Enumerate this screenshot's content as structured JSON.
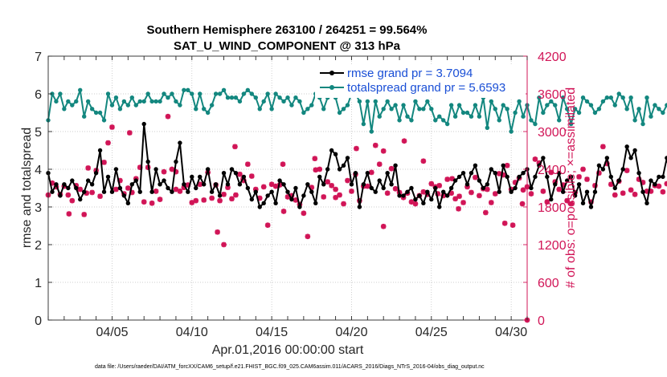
{
  "chart_data": {
    "type": "line",
    "title_line1": "Southern Hemisphere 263100 / 264251 = 99.564%",
    "title_line2": "SAT_U_WIND_COMPONENT @ 313 hPa",
    "xlabel": "Apr.01,2016 00:00:00 start",
    "ylabel_left": "rmse and totalspread",
    "ylabel_right": "# of obs: o=possible; ×=assimilated",
    "footnote": "data file: /Users/raeder/DAI/ATM_forcXX/CAM6_setup/f.e21.FHIST_BGC.f09_025.CAM6assim.011/ACARS_2016/Diags_NTrS_2016-04/obs_diag_output.nc",
    "x_range": [
      1,
      31
    ],
    "x_ticks": [
      5,
      10,
      15,
      20,
      25,
      30
    ],
    "x_tick_labels": [
      "04/05",
      "04/10",
      "04/15",
      "04/20",
      "04/25",
      "04/30"
    ],
    "ylim_left": [
      0,
      7
    ],
    "y_ticks_left": [
      "0",
      "1",
      "2",
      "3",
      "4",
      "5",
      "6",
      "7"
    ],
    "ylim_right": [
      0,
      4200
    ],
    "y_ticks_right": [
      "0",
      "600",
      "1200",
      "1800",
      "2400",
      "3000",
      "3600",
      "4200"
    ],
    "colors": {
      "rmse": "#000000",
      "spread": "#13877f",
      "obs": "#d11557",
      "right_axis": "#d11557",
      "legend_text": "#1a4fd6"
    },
    "legend": [
      {
        "key": "rmse",
        "label": "rmse grand pr = 3.7094"
      },
      {
        "key": "spread",
        "label": "totalspread grand pr = 5.6593"
      }
    ],
    "x_start": 1.0,
    "x_step": 0.25,
    "series": [
      {
        "name": "rmse",
        "values": [
          3.9,
          3.4,
          3.6,
          3.3,
          3.6,
          3.5,
          3.7,
          3.5,
          3.2,
          3.4,
          3.7,
          3.6,
          3.9,
          4.5,
          3.4,
          3.8,
          3.4,
          4.0,
          3.5,
          3.3,
          3.1,
          3.6,
          3.7,
          3.4,
          5.2,
          4.2,
          3.4,
          4.0,
          3.6,
          3.7,
          3.5,
          3.4,
          4.2,
          4.7,
          3.6,
          3.4,
          3.8,
          3.5,
          3.8,
          3.6,
          4.0,
          3.4,
          3.6,
          3.3,
          3.9,
          3.6,
          4.0,
          3.9,
          3.6,
          3.8,
          3.5,
          3.2,
          3.4,
          3.0,
          3.1,
          3.3,
          3.4,
          3.1,
          3.7,
          3.6,
          3.4,
          3.2,
          3.5,
          3.0,
          3.3,
          3.6,
          3.4,
          3.1,
          3.8,
          3.6,
          4.0,
          4.5,
          4.4,
          4.0,
          4.1,
          4.3,
          3.6,
          3.9,
          3.0,
          3.6,
          3.9,
          3.5,
          3.4,
          3.7,
          3.5,
          3.9,
          3.6,
          4.1,
          3.3,
          3.3,
          3.4,
          3.5,
          3.2,
          3.3,
          3.1,
          3.4,
          3.2,
          3.5,
          3.0,
          3.4,
          3.3,
          3.5,
          3.7,
          3.8,
          3.9,
          3.6,
          3.9,
          4.1,
          3.7,
          3.5,
          3.6,
          4.0,
          3.9,
          3.4,
          4.1,
          3.8,
          3.4,
          3.5,
          3.8,
          3.9,
          4.0,
          3.5,
          3.8,
          4.1,
          4.3,
          3.8,
          3.2,
          3.6,
          3.9,
          3.4,
          3.7,
          3.8,
          3.3,
          3.6,
          3.1,
          3.4,
          3.0,
          3.4,
          4.1,
          4.0,
          4.3,
          3.8,
          3.5,
          3.7,
          4.0,
          4.6,
          4.3,
          4.5,
          3.9,
          3.4,
          3.1,
          3.7,
          3.6,
          3.8,
          3.8,
          4.3,
          3.7,
          4.2,
          4.6,
          4.0,
          3.9,
          4.1,
          4.6,
          3.9,
          4.0
        ]
      },
      {
        "name": "spread",
        "values": [
          5.3,
          6.0,
          5.8,
          6.0,
          5.6,
          5.8,
          5.7,
          5.8,
          6.1,
          5.4,
          5.8,
          5.6,
          5.5,
          5.5,
          5.3,
          6.0,
          5.7,
          5.9,
          5.6,
          5.8,
          5.7,
          5.9,
          5.7,
          5.8,
          5.8,
          6.0,
          5.8,
          5.8,
          5.8,
          6.0,
          5.9,
          6.0,
          5.8,
          5.7,
          6.1,
          6.1,
          6.0,
          5.6,
          6.0,
          5.6,
          5.5,
          5.7,
          6.0,
          6.0,
          6.1,
          5.9,
          5.9,
          5.9,
          5.8,
          6.0,
          6.1,
          6.0,
          5.9,
          5.6,
          5.8,
          6.0,
          5.6,
          6.0,
          5.9,
          5.8,
          5.9,
          5.7,
          5.9,
          5.8,
          5.5,
          5.6,
          5.7,
          6.0,
          5.9,
          5.6,
          5.9,
          6.0,
          5.9,
          5.5,
          5.6,
          5.7,
          6.0,
          6.0,
          5.8,
          5.2,
          5.8,
          5.0,
          5.8,
          5.4,
          5.6,
          5.8,
          5.6,
          5.7,
          5.3,
          5.7,
          5.4,
          5.3,
          5.8,
          5.6,
          5.6,
          5.8,
          5.6,
          5.3,
          5.4,
          5.3,
          5.2,
          5.7,
          5.4,
          5.7,
          5.5,
          5.5,
          5.4,
          5.7,
          5.4,
          5.9,
          5.1,
          5.8,
          5.6,
          5.3,
          5.7,
          5.6,
          5.0,
          5.5,
          5.8,
          5.4,
          5.7,
          5.3,
          5.2,
          5.9,
          5.5,
          5.7,
          5.8,
          5.7,
          5.3,
          5.9,
          5.6,
          5.2,
          5.6,
          5.5,
          5.9,
          5.8,
          5.7,
          5.5,
          5.6,
          5.8,
          5.9,
          5.9,
          5.7,
          6.0,
          5.9,
          5.6,
          5.9,
          5.3,
          5.6,
          5.2,
          5.9,
          5.4,
          5.7,
          5.6,
          5.5,
          5.7,
          5.8,
          5.8,
          5.5,
          5.9,
          5.5,
          5.6,
          6.0,
          5.7,
          5.9,
          5.2,
          5.9,
          5.5,
          5.2,
          5.4,
          5.7,
          5.2,
          6.0,
          6.0
        ]
      },
      {
        "name": "assimilated obs",
        "axis": "right",
        "values": [
          1990,
          2180,
          2120,
          2000,
          2130,
          1990,
          1900,
          2140,
          2080,
          1680,
          2420,
          2030,
          2380,
          1970,
          2510,
          2820,
          3070,
          2080,
          2220,
          2010,
          2100,
          2030,
          2250,
          2430,
          1880,
          2430,
          1860,
          2050,
          1920,
          2360,
          3240,
          2400,
          2360,
          2050,
          2110,
          2150,
          1870,
          1900,
          2160,
          1910,
          2350,
          1940,
          2150,
          1900,
          2000,
          2110,
          1930,
          1990,
          2320,
          2220,
          2480,
          2290,
          2080,
          1940,
          2120,
          1510,
          2160,
          2130,
          2150,
          1730,
          1960,
          1980,
          1910,
          1840,
          1700,
          1330,
          2110,
          2390,
          2400,
          1960,
          2200,
          2140,
          2080,
          1990,
          1850,
          2220,
          2050,
          2320,
          1900,
          2130,
          2130,
          2350,
          2780,
          2480,
          2690,
          2020,
          2410,
          2090,
          2030,
          1950,
          2020,
          1880,
          1850,
          1980,
          2040,
          2000,
          2170,
          2120,
          2140,
          1980,
          2240,
          2020,
          1930,
          1970,
          1870,
          2120,
          2030,
          2270,
          1980,
          2090,
          2080,
          1870,
          2010,
          2330,
          2310,
          2460,
          2080,
          2190,
          2260,
          2070,
          2120,
          2010,
          2560,
          2500,
          2050,
          1880,
          2350,
          2200,
          2080,
          2150,
          1900,
          1850,
          2030,
          2280,
          2400,
          2240,
          1880,
          2140,
          2340,
          2760,
          2490,
          2160,
          1990,
          2210,
          2020,
          2380,
          2070,
          2000,
          2240,
          2190,
          2050,
          2050,
          2140,
          2130,
          2040,
          2170,
          2040,
          2260,
          2010,
          2260,
          2300,
          1990,
          2150,
          2170,
          1970,
          2220,
          2160,
          2140,
          2080,
          2170,
          2220,
          2400,
          2310,
          2240,
          2370,
          2100,
          2210
        ]
      }
    ],
    "obs_extra_points": [
      {
        "x": 2.3,
        "y": 1690
      },
      {
        "x": 3.4,
        "y": 2020
      },
      {
        "x": 6.1,
        "y": 2980
      },
      {
        "x": 9.0,
        "y": 2080
      },
      {
        "x": 11.6,
        "y": 1400
      },
      {
        "x": 12.0,
        "y": 1200
      },
      {
        "x": 12.7,
        "y": 2760
      },
      {
        "x": 13.2,
        "y": 2240
      },
      {
        "x": 15.7,
        "y": 2480
      },
      {
        "x": 17.7,
        "y": 2570
      },
      {
        "x": 19.0,
        "y": 1950
      },
      {
        "x": 20.3,
        "y": 2730
      },
      {
        "x": 22.0,
        "y": 1490
      },
      {
        "x": 23.3,
        "y": 2850
      },
      {
        "x": 24.5,
        "y": 2530
      },
      {
        "x": 25.4,
        "y": 2010
      },
      {
        "x": 26.3,
        "y": 2250
      },
      {
        "x": 26.7,
        "y": 1770
      },
      {
        "x": 28.4,
        "y": 1710
      },
      {
        "x": 29.6,
        "y": 1540
      },
      {
        "x": 30.1,
        "y": 1510
      },
      {
        "x": 30.7,
        "y": 1850
      },
      {
        "x": 31.0,
        "y": 0
      }
    ]
  }
}
